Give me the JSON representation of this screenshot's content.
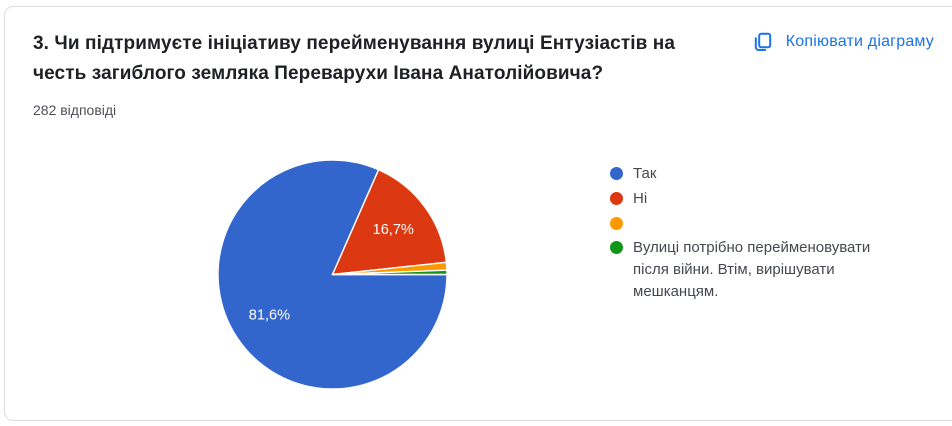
{
  "card": {
    "title": "3. Чи підтримуєте ініціативу перейменування вулиці Ентузіастів на честь загиблого земляка Переварухи Івана Анатолійовича?",
    "responses_count": "282 відповіді",
    "copy_button_label": "Копіювати діаграму"
  },
  "colors": {
    "link_blue": "#1a73e8",
    "card_border": "#dadce0",
    "title_text": "#202124"
  },
  "chart_data": {
    "type": "pie",
    "title": "",
    "categories": [
      "Так",
      "Ні",
      "",
      "Вулиці потрібно перейменовувати після війни. Втім, вирішувати мешканцям."
    ],
    "values": [
      81.6,
      16.7,
      1.1,
      0.6
    ],
    "slice_labels": [
      "81,6%",
      "16,7%",
      "",
      ""
    ],
    "colors": [
      "#3366cc",
      "#dc3912",
      "#ff9900",
      "#109618"
    ],
    "legend_position": "right",
    "start_angle_deg": 90,
    "direction": "clockwise",
    "responses_total": 282
  }
}
